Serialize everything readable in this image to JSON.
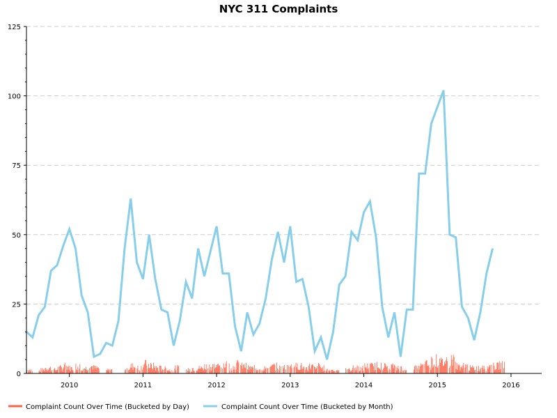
{
  "chart_data": {
    "type": "line",
    "title": "NYC 311 Complaints",
    "xlabel": "",
    "ylabel": "",
    "xlim": [
      "2009-06",
      "2016-06"
    ],
    "ylim": [
      0,
      125
    ],
    "y_ticks": [
      0,
      25,
      50,
      75,
      100,
      125
    ],
    "x_ticks": [
      "2010",
      "2011",
      "2012",
      "2013",
      "2014",
      "2015",
      "2016"
    ],
    "grid": "horizontal dashed",
    "legend_placement": "bottom",
    "series": [
      {
        "name": "Complaint Count Over Time (Bucketed by Day)",
        "color": "#ff6347",
        "style": "filled daily counts",
        "gaps": [
          [
            "2009-06",
            "2009-06"
          ],
          [
            "2009-08",
            "2009-08"
          ],
          [
            "2010-06",
            "2010-07"
          ],
          [
            "2010-08",
            "2010-10"
          ],
          [
            "2011-07",
            "2011-08"
          ],
          [
            "2013-09",
            "2013-10"
          ],
          [
            "2014-08",
            "2014-09"
          ]
        ],
        "points": [
          [
            "2009-06",
            2
          ],
          [
            "2009-08",
            2
          ],
          [
            "2009-09",
            3
          ],
          [
            "2009-10",
            2
          ],
          [
            "2009-11",
            3
          ],
          [
            "2009-12",
            4
          ],
          [
            "2010-01",
            3
          ],
          [
            "2010-02",
            4
          ],
          [
            "2010-03",
            3
          ],
          [
            "2010-04",
            4
          ],
          [
            "2010-05",
            3
          ],
          [
            "2010-07",
            2
          ],
          [
            "2010-10",
            3
          ],
          [
            "2010-11",
            4
          ],
          [
            "2010-12",
            3
          ],
          [
            "2011-01",
            5
          ],
          [
            "2011-02",
            4
          ],
          [
            "2011-03",
            3
          ],
          [
            "2011-04",
            3
          ],
          [
            "2011-05",
            2
          ],
          [
            "2011-06",
            3
          ],
          [
            "2011-08",
            2
          ],
          [
            "2011-09",
            3
          ],
          [
            "2011-10",
            3
          ],
          [
            "2011-11",
            4
          ],
          [
            "2011-12",
            4
          ],
          [
            "2012-01",
            4
          ],
          [
            "2012-02",
            5
          ],
          [
            "2012-03",
            4
          ],
          [
            "2012-04",
            5
          ],
          [
            "2012-05",
            4
          ],
          [
            "2012-06",
            3
          ],
          [
            "2012-07",
            3
          ],
          [
            "2012-08",
            3
          ],
          [
            "2012-09",
            3
          ],
          [
            "2012-10",
            4
          ],
          [
            "2012-11",
            3
          ],
          [
            "2012-12",
            4
          ],
          [
            "2013-01",
            4
          ],
          [
            "2013-02",
            4
          ],
          [
            "2013-03",
            3
          ],
          [
            "2013-04",
            4
          ],
          [
            "2013-05",
            4
          ],
          [
            "2013-06",
            3
          ],
          [
            "2013-07",
            2
          ],
          [
            "2013-08",
            2
          ],
          [
            "2013-10",
            2
          ],
          [
            "2013-11",
            3
          ],
          [
            "2013-12",
            3
          ],
          [
            "2014-01",
            4
          ],
          [
            "2014-02",
            4
          ],
          [
            "2014-03",
            5
          ],
          [
            "2014-04",
            4
          ],
          [
            "2014-05",
            4
          ],
          [
            "2014-06",
            3
          ],
          [
            "2014-07",
            3
          ],
          [
            "2014-09",
            3
          ],
          [
            "2014-10",
            4
          ],
          [
            "2014-11",
            5
          ],
          [
            "2014-12",
            7
          ],
          [
            "2015-01",
            6
          ],
          [
            "2015-02",
            7
          ],
          [
            "2015-03",
            8
          ],
          [
            "2015-04",
            4
          ],
          [
            "2015-05",
            4
          ],
          [
            "2015-06",
            3
          ],
          [
            "2015-07",
            3
          ],
          [
            "2015-08",
            3
          ],
          [
            "2015-09",
            4
          ],
          [
            "2015-10",
            4
          ],
          [
            "2015-11",
            5
          ]
        ]
      },
      {
        "name": "Complaint Count Over Time (Bucketed by Month)",
        "color": "#87ceeb",
        "style": "line",
        "points": [
          [
            "2009-06",
            15
          ],
          [
            "2009-07",
            13
          ],
          [
            "2009-08",
            21
          ],
          [
            "2009-09",
            24
          ],
          [
            "2009-10",
            37
          ],
          [
            "2009-11",
            39
          ],
          [
            "2009-12",
            46
          ],
          [
            "2010-01",
            52
          ],
          [
            "2010-02",
            45
          ],
          [
            "2010-03",
            28
          ],
          [
            "2010-04",
            22
          ],
          [
            "2010-05",
            6
          ],
          [
            "2010-06",
            7
          ],
          [
            "2010-07",
            11
          ],
          [
            "2010-08",
            10
          ],
          [
            "2010-09",
            19
          ],
          [
            "2010-10",
            45
          ],
          [
            "2010-11",
            63
          ],
          [
            "2010-12",
            40
          ],
          [
            "2011-01",
            34
          ],
          [
            "2011-02",
            50
          ],
          [
            "2011-03",
            34
          ],
          [
            "2011-04",
            23
          ],
          [
            "2011-05",
            22
          ],
          [
            "2011-06",
            10
          ],
          [
            "2011-07",
            19
          ],
          [
            "2011-08",
            33
          ],
          [
            "2011-09",
            27
          ],
          [
            "2011-10",
            45
          ],
          [
            "2011-11",
            35
          ],
          [
            "2011-12",
            44
          ],
          [
            "2012-01",
            53
          ],
          [
            "2012-02",
            36
          ],
          [
            "2012-03",
            36
          ],
          [
            "2012-04",
            17
          ],
          [
            "2012-05",
            8
          ],
          [
            "2012-06",
            22
          ],
          [
            "2012-07",
            14
          ],
          [
            "2012-08",
            18
          ],
          [
            "2012-09",
            27
          ],
          [
            "2012-10",
            41
          ],
          [
            "2012-11",
            51
          ],
          [
            "2012-12",
            40
          ],
          [
            "2013-01",
            53
          ],
          [
            "2013-02",
            33
          ],
          [
            "2013-03",
            34
          ],
          [
            "2013-04",
            24
          ],
          [
            "2013-05",
            8
          ],
          [
            "2013-06",
            13
          ],
          [
            "2013-07",
            5
          ],
          [
            "2013-08",
            15
          ],
          [
            "2013-09",
            32
          ],
          [
            "2013-10",
            35
          ],
          [
            "2013-11",
            51
          ],
          [
            "2013-12",
            48
          ],
          [
            "2014-01",
            58
          ],
          [
            "2014-02",
            62
          ],
          [
            "2014-03",
            49
          ],
          [
            "2014-04",
            24
          ],
          [
            "2014-05",
            13
          ],
          [
            "2014-06",
            22
          ],
          [
            "2014-07",
            6
          ],
          [
            "2014-08",
            23
          ],
          [
            "2014-09",
            23
          ],
          [
            "2014-10",
            72
          ],
          [
            "2014-11",
            72
          ],
          [
            "2014-12",
            90
          ],
          [
            "2015-01",
            96
          ],
          [
            "2015-02",
            102
          ],
          [
            "2015-03",
            50
          ],
          [
            "2015-04",
            49
          ],
          [
            "2015-05",
            24
          ],
          [
            "2015-06",
            20
          ],
          [
            "2015-07",
            12
          ],
          [
            "2015-08",
            22
          ],
          [
            "2015-09",
            36
          ],
          [
            "2015-10",
            45
          ]
        ]
      }
    ]
  }
}
